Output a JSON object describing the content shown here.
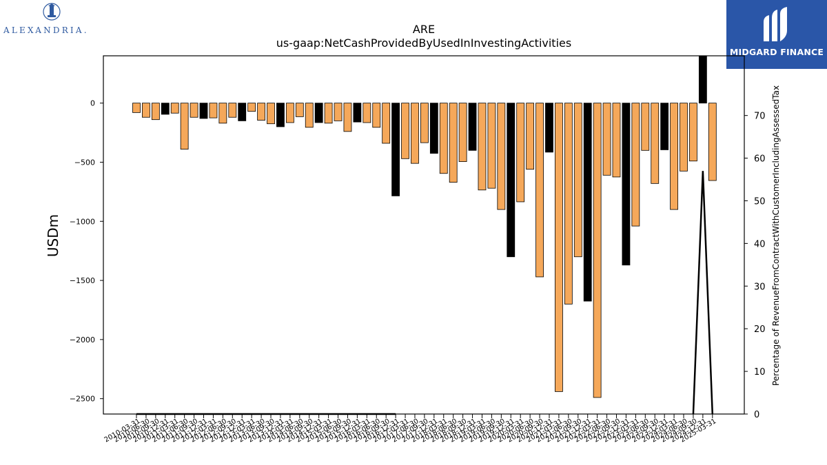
{
  "branding": {
    "left_logo_text": "ALEXANDRIA.",
    "right_logo_text": "MIDGARD FINANCE"
  },
  "chart_data": {
    "type": "bar",
    "title": "ARE",
    "subtitle": "us-gaap:NetCashProvidedByUsedInInvestingActivities",
    "ylabel": "USDm",
    "y2label": "Percentage of RevenueFromContractWithCustomerIncludingAssessedTax",
    "ylim": [
      -2630,
      400
    ],
    "y2lim": [
      0,
      84
    ],
    "yticks": [
      0,
      -500,
      -1000,
      -1500,
      -2000,
      -2500
    ],
    "y2ticks": [
      0,
      10,
      20,
      30,
      40,
      50,
      60,
      70
    ],
    "x_tick_labels": [
      "2010-03-31",
      "2010-06-30",
      "2010-09-30",
      "2010-12-31",
      "2011-03-31",
      "2011-06-30",
      "2011-09-30",
      "2011-12-31",
      "2012-03-31",
      "2012-06-30",
      "2012-09-30",
      "2012-12-31",
      "2013-03-31",
      "2013-06-30",
      "2013-09-30",
      "2013-12-31",
      "2014-03-31",
      "2014-06-30",
      "2014-09-30",
      "2014-12-31",
      "2015-03-31",
      "2015-06-30",
      "2015-09-30",
      "2015-12-31",
      "2016-03-31",
      "2016-06-30",
      "2016-09-30",
      "2016-12-31",
      "2017-03-31",
      "2017-06-30",
      "2017-09-30",
      "2017-12-31",
      "2018-03-31",
      "2018-06-30",
      "2018-09-30",
      "2018-12-31",
      "2019-03-31",
      "2019-06-30",
      "2019-09-30",
      "2019-12-31",
      "2020-03-31",
      "2020-06-30",
      "2020-09-30",
      "2020-12-31",
      "2021-03-31",
      "2021-06-30",
      "2021-09-30",
      "2021-12-31",
      "2022-03-31",
      "2022-06-30",
      "2022-09-30",
      "2022-12-31",
      "2023-03-31",
      "2023-06-30",
      "2023-09-30",
      "2023-12-31",
      "2024-03-31",
      "2024-06-30",
      "2024-09-30",
      "2024-12-31",
      "2025-03-31"
    ],
    "colors": {
      "quarter": "#f5a85a",
      "annual": "#000000",
      "line": "#000000",
      "edge": "#000000"
    },
    "values": [
      -80,
      -120,
      -140,
      -95,
      -85,
      -390,
      -120,
      -130,
      -125,
      -170,
      -120,
      -150,
      -70,
      -145,
      -175,
      -200,
      -165,
      -115,
      -205,
      -165,
      -170,
      -150,
      -240,
      -160,
      -165,
      -205,
      -340,
      -785,
      -470,
      -510,
      -335,
      -425,
      -595,
      -670,
      -495,
      -400,
      -735,
      -720,
      -900,
      -1300,
      -835,
      -560,
      -1470,
      -415,
      -2440,
      -1700,
      -1300,
      -1675,
      -2490,
      -610,
      -625,
      -1370,
      -1040,
      -400,
      -680,
      -395,
      -900,
      -575,
      -490,
      400,
      -655
    ],
    "annual_flags": [
      0,
      0,
      0,
      1,
      0,
      0,
      0,
      1,
      0,
      0,
      0,
      1,
      0,
      0,
      0,
      1,
      0,
      0,
      0,
      1,
      0,
      0,
      0,
      1,
      0,
      0,
      0,
      1,
      0,
      0,
      0,
      1,
      0,
      0,
      0,
      1,
      0,
      0,
      0,
      1,
      0,
      0,
      0,
      1,
      0,
      0,
      0,
      1,
      0,
      0,
      0,
      1,
      0,
      0,
      0,
      1,
      0,
      0,
      0,
      1,
      0
    ],
    "percentage_line": [
      0,
      0,
      0,
      0,
      0,
      0,
      0,
      0,
      0,
      0,
      0,
      0,
      0,
      0,
      0,
      0,
      0,
      0,
      0,
      0,
      0,
      0,
      0,
      0,
      0,
      0,
      0,
      0,
      null,
      null,
      null,
      null,
      null,
      null,
      null,
      null,
      null,
      null,
      null,
      null,
      null,
      null,
      null,
      null,
      null,
      null,
      null,
      null,
      null,
      null,
      null,
      null,
      null,
      null,
      null,
      null,
      null,
      null,
      0,
      57,
      0
    ]
  }
}
